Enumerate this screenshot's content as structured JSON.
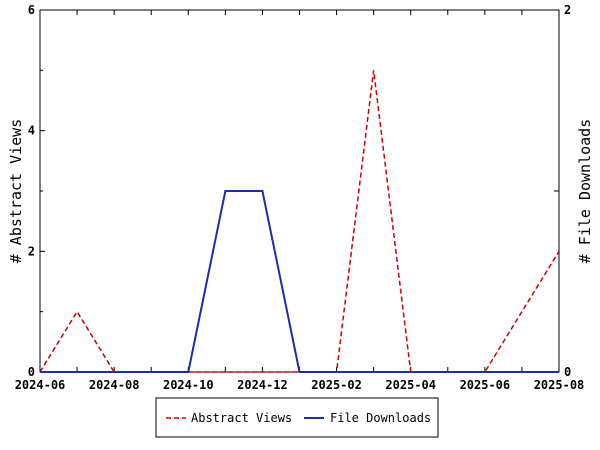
{
  "chart_data": {
    "type": "line",
    "title": "",
    "x": [
      "2024-06",
      "2024-07",
      "2024-08",
      "2024-09",
      "2024-10",
      "2024-11",
      "2024-12",
      "2025-01",
      "2025-02",
      "2025-03",
      "2025-04",
      "2025-05",
      "2025-06",
      "2025-07",
      "2025-08"
    ],
    "x_tick_labels": [
      "2024-06",
      "2024-08",
      "2024-10",
      "2024-12",
      "2025-02",
      "2025-04",
      "2025-06",
      "2025-08"
    ],
    "ylabel": "# Abstract Views",
    "y2label": "# File Downloads",
    "ylim": [
      0,
      6
    ],
    "y2lim": [
      0,
      2
    ],
    "y_ticks": [
      "0",
      "2",
      "4",
      "6"
    ],
    "y2_ticks": [
      "0",
      "2"
    ],
    "grid": false,
    "legend_position": "bottom",
    "series": [
      {
        "name": "Abstract Views",
        "axis": "left",
        "style": "dashed",
        "color": "#cc0000",
        "values": [
          0,
          1,
          0,
          0,
          0,
          0,
          0,
          0,
          0,
          5,
          0,
          0,
          0,
          1,
          2
        ]
      },
      {
        "name": "File Downloads",
        "axis": "right",
        "style": "solid",
        "color": "#1a2fa8",
        "values": [
          0,
          0,
          0,
          0,
          0,
          1,
          1,
          0,
          0,
          0,
          0,
          0,
          0,
          0,
          0
        ]
      }
    ]
  }
}
